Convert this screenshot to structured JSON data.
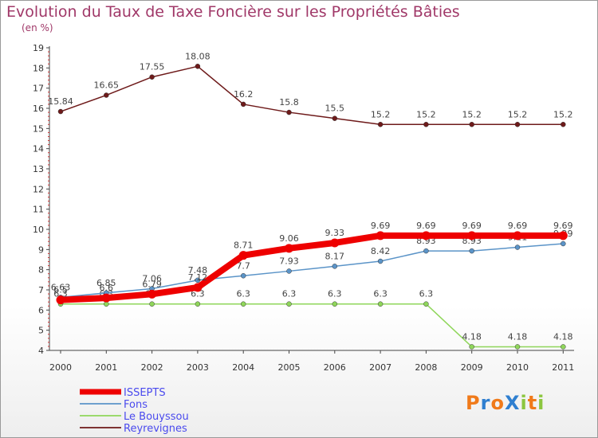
{
  "title": "Evolution du Taux de Taxe Foncière sur les Propriétés Bâties",
  "subtitle": "(en %)",
  "logo": "ProXiti",
  "chart_data": {
    "type": "line",
    "x": [
      "2000",
      "2001",
      "2002",
      "2003",
      "2004",
      "2005",
      "2006",
      "2007",
      "2008",
      "2009",
      "2010",
      "2011"
    ],
    "ylim": [
      4,
      19
    ],
    "yticks": [
      4,
      5,
      6,
      7,
      8,
      9,
      10,
      11,
      12,
      13,
      14,
      15,
      16,
      17,
      18,
      19
    ],
    "grid": false,
    "legend_position": "bottom-left",
    "series": [
      {
        "name": "Reyrevignes",
        "color": "#6e1a1a",
        "width": 1.5,
        "values": [
          15.84,
          16.65,
          17.55,
          18.08,
          16.2,
          15.8,
          15.5,
          15.2,
          15.2,
          15.2,
          15.2,
          15.2
        ],
        "labels": [
          "15.84",
          "16.65",
          "17.55",
          "18.08",
          "16.2",
          "15.8",
          "15.5",
          "15.2",
          "15.2",
          "15.2",
          "15.2",
          "15.2"
        ]
      },
      {
        "name": "Le Bouyssou",
        "color": "#8fd65a",
        "width": 1.5,
        "values": [
          6.3,
          6.3,
          6.3,
          6.3,
          6.3,
          6.3,
          6.3,
          6.3,
          6.3,
          4.18,
          4.18,
          4.18
        ],
        "labels": [
          "6.3",
          "6.3",
          "6.3",
          "6.3",
          "6.3",
          "6.3",
          "6.3",
          "6.3",
          "6.3",
          "4.18",
          "4.18",
          "4.18"
        ]
      },
      {
        "name": "Fons",
        "color": "#5b94c8",
        "width": 1.5,
        "values": [
          6.63,
          6.85,
          7.06,
          7.48,
          7.7,
          7.93,
          8.17,
          8.42,
          8.93,
          8.93,
          9.11,
          9.29
        ],
        "labels": [
          "6.63",
          "6.85",
          "7.06",
          "7.48",
          "7.7",
          "7.93",
          "8.17",
          "8.42",
          "8.93",
          "8.93",
          "9.11",
          "9.29"
        ]
      },
      {
        "name": "ISSEPTS",
        "color": "#ee0000",
        "width": 8,
        "values": [
          6.5,
          6.6,
          6.79,
          7.12,
          8.71,
          9.06,
          9.33,
          9.69,
          9.69,
          9.69,
          9.69,
          9.69
        ],
        "labels": [
          "6.5",
          "6.6",
          "6.79",
          "7.12",
          "8.71",
          "9.06",
          "9.33",
          "9.69",
          "9.69",
          "9.69",
          "9.69",
          "9.69"
        ]
      }
    ],
    "legend": [
      {
        "name": "ISSEPTS",
        "color": "#ee0000",
        "text_color": "#4a4aee"
      },
      {
        "name": "Fons",
        "color": "#5b94c8",
        "text_color": "#4a4aee"
      },
      {
        "name": "Le Bouyssou",
        "color": "#8fd65a",
        "text_color": "#4a4aee"
      },
      {
        "name": "Reyrevignes",
        "color": "#6e1a1a",
        "text_color": "#4a4aee"
      }
    ]
  }
}
